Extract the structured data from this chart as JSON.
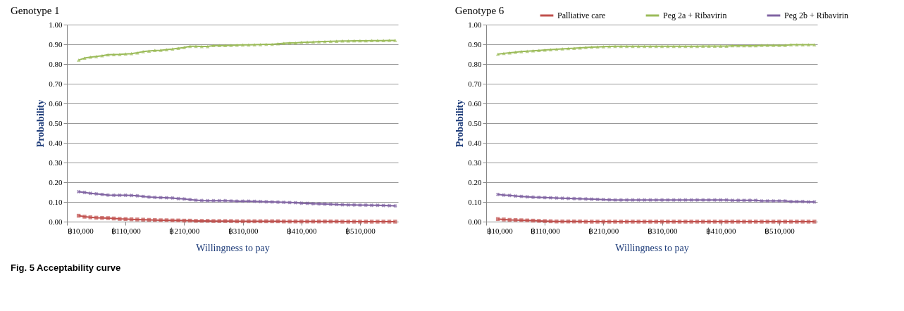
{
  "chart_data": [
    {
      "type": "line",
      "title": "Genotype 1",
      "xlabel": "Willingness to pay",
      "ylabel": "Probability",
      "x": [
        30000,
        40000,
        50000,
        60000,
        70000,
        80000,
        90000,
        100000,
        110000,
        120000,
        130000,
        140000,
        150000,
        160000,
        170000,
        180000,
        190000,
        200000,
        210000,
        220000,
        230000,
        240000,
        250000,
        260000,
        270000,
        280000,
        290000,
        300000,
        310000,
        320000,
        330000,
        340000,
        350000,
        360000,
        370000,
        380000,
        390000,
        400000,
        410000,
        420000,
        430000,
        440000,
        450000,
        460000,
        470000,
        480000,
        490000,
        500000,
        510000,
        520000,
        530000,
        540000,
        550000,
        560000,
        570000
      ],
      "series": [
        {
          "name": "Palliative care",
          "color": "#c0504d",
          "marker": "square",
          "values": [
            0.03,
            0.025,
            0.022,
            0.02,
            0.019,
            0.018,
            0.016,
            0.014,
            0.013,
            0.012,
            0.011,
            0.01,
            0.009,
            0.008,
            0.007,
            0.007,
            0.006,
            0.006,
            0.005,
            0.005,
            0.004,
            0.004,
            0.004,
            0.003,
            0.003,
            0.003,
            0.003,
            0.002,
            0.002,
            0.002,
            0.002,
            0.002,
            0.002,
            0.002,
            0.002,
            0.001,
            0.001,
            0.001,
            0.001,
            0.001,
            0.001,
            0.001,
            0.001,
            0.001,
            0.001,
            0.0,
            0.0,
            0.0,
            0.0,
            0.0,
            0.0,
            0.0,
            0.0,
            0.0,
            0.0
          ]
        },
        {
          "name": "Peg 2a + Ribavirin",
          "color": "#9bbb59",
          "marker": "triangle",
          "values": [
            0.82,
            0.83,
            0.835,
            0.838,
            0.842,
            0.847,
            0.848,
            0.849,
            0.851,
            0.853,
            0.857,
            0.863,
            0.866,
            0.869,
            0.87,
            0.873,
            0.876,
            0.88,
            0.884,
            0.89,
            0.89,
            0.889,
            0.889,
            0.894,
            0.894,
            0.894,
            0.895,
            0.896,
            0.897,
            0.897,
            0.898,
            0.899,
            0.9,
            0.9,
            0.903,
            0.905,
            0.907,
            0.907,
            0.91,
            0.911,
            0.912,
            0.913,
            0.914,
            0.915,
            0.916,
            0.917,
            0.917,
            0.918,
            0.918,
            0.918,
            0.919,
            0.919,
            0.919,
            0.92,
            0.92
          ]
        },
        {
          "name": "Peg 2b + Ribavirin",
          "color": "#8064a2",
          "marker": "cross",
          "values": [
            0.152,
            0.148,
            0.144,
            0.141,
            0.138,
            0.135,
            0.134,
            0.134,
            0.134,
            0.133,
            0.131,
            0.128,
            0.125,
            0.123,
            0.122,
            0.121,
            0.12,
            0.117,
            0.115,
            0.112,
            0.109,
            0.107,
            0.106,
            0.106,
            0.106,
            0.106,
            0.105,
            0.104,
            0.104,
            0.104,
            0.103,
            0.102,
            0.101,
            0.1,
            0.099,
            0.098,
            0.097,
            0.096,
            0.094,
            0.093,
            0.091,
            0.09,
            0.089,
            0.088,
            0.087,
            0.086,
            0.085,
            0.085,
            0.084,
            0.084,
            0.083,
            0.083,
            0.082,
            0.081,
            0.08
          ]
        }
      ],
      "xlim": [
        10000,
        575000
      ],
      "xticks": [
        {
          "value": 10000,
          "label": "฿10,000"
        },
        {
          "value": 110000,
          "label": "฿110,000"
        },
        {
          "value": 210000,
          "label": "฿210,000"
        },
        {
          "value": 310000,
          "label": "฿310,000"
        },
        {
          "value": 410000,
          "label": "฿410,000"
        },
        {
          "value": 510000,
          "label": "฿510,000"
        }
      ],
      "ylim": [
        0,
        1
      ],
      "yticks": [
        {
          "value": 0,
          "label": "0.00"
        },
        {
          "value": 0.1,
          "label": "0.10"
        },
        {
          "value": 0.2,
          "label": "0.20"
        },
        {
          "value": 0.3,
          "label": "0.30"
        },
        {
          "value": 0.4,
          "label": "0.40"
        },
        {
          "value": 0.5,
          "label": "0.50"
        },
        {
          "value": 0.6,
          "label": "0.60"
        },
        {
          "value": 0.7,
          "label": "0.70"
        },
        {
          "value": 0.8,
          "label": "0.80"
        },
        {
          "value": 0.9,
          "label": "0.90"
        },
        {
          "value": 1,
          "label": "1.00"
        }
      ],
      "grid": "y",
      "legend": "top",
      "line_style": "solid",
      "annotations": [
        "Fig. 5 Acceptability curve"
      ]
    },
    {
      "type": "line",
      "title": "Genotype 6",
      "xlabel": "Willingness to pay",
      "ylabel": "Probability",
      "x": [
        30000,
        40000,
        50000,
        60000,
        70000,
        80000,
        90000,
        100000,
        110000,
        120000,
        130000,
        140000,
        150000,
        160000,
        170000,
        180000,
        190000,
        200000,
        210000,
        220000,
        230000,
        240000,
        250000,
        260000,
        270000,
        280000,
        290000,
        300000,
        310000,
        320000,
        330000,
        340000,
        350000,
        360000,
        370000,
        380000,
        390000,
        400000,
        410000,
        420000,
        430000,
        440000,
        450000,
        460000,
        470000,
        480000,
        490000,
        500000,
        510000,
        520000,
        530000,
        540000,
        550000,
        560000,
        570000
      ],
      "series": [
        {
          "name": "Palliative care",
          "color": "#c0504d",
          "marker": "square",
          "values": [
            0.013,
            0.011,
            0.009,
            0.008,
            0.007,
            0.006,
            0.005,
            0.004,
            0.003,
            0.002,
            0.001,
            0.001,
            0.001,
            0.001,
            0.001,
            0.0,
            0.0,
            0.0,
            0.0,
            0.0,
            0.0,
            0.0,
            0.0,
            0.0,
            0.0,
            0.0,
            0.0,
            0.0,
            0.0,
            0.0,
            0.0,
            0.0,
            0.0,
            0.0,
            0.0,
            0.0,
            0.0,
            0.0,
            0.0,
            0.0,
            0.0,
            0.0,
            0.0,
            0.0,
            0.0,
            0.0,
            0.0,
            0.0,
            0.0,
            0.0,
            0.0,
            0.0,
            0.0,
            0.0,
            0.0
          ]
        },
        {
          "name": "Peg 2a + Ribavirin",
          "color": "#9bbb59",
          "marker": "triangle",
          "values": [
            0.85,
            0.854,
            0.857,
            0.86,
            0.863,
            0.865,
            0.867,
            0.869,
            0.871,
            0.873,
            0.875,
            0.877,
            0.879,
            0.88,
            0.882,
            0.884,
            0.886,
            0.887,
            0.888,
            0.889,
            0.89,
            0.89,
            0.89,
            0.89,
            0.89,
            0.89,
            0.89,
            0.89,
            0.89,
            0.89,
            0.89,
            0.89,
            0.89,
            0.89,
            0.89,
            0.891,
            0.891,
            0.891,
            0.891,
            0.891,
            0.893,
            0.893,
            0.893,
            0.893,
            0.893,
            0.895,
            0.895,
            0.895,
            0.895,
            0.895,
            0.898,
            0.898,
            0.898,
            0.898,
            0.898
          ]
        },
        {
          "name": "Peg 2b + Ribavirin",
          "color": "#8064a2",
          "marker": "cross",
          "values": [
            0.138,
            0.135,
            0.133,
            0.13,
            0.128,
            0.126,
            0.124,
            0.123,
            0.122,
            0.121,
            0.12,
            0.119,
            0.118,
            0.117,
            0.116,
            0.115,
            0.114,
            0.113,
            0.112,
            0.111,
            0.11,
            0.11,
            0.11,
            0.11,
            0.11,
            0.11,
            0.11,
            0.11,
            0.11,
            0.11,
            0.11,
            0.11,
            0.11,
            0.11,
            0.11,
            0.11,
            0.11,
            0.11,
            0.11,
            0.11,
            0.108,
            0.108,
            0.108,
            0.108,
            0.108,
            0.105,
            0.105,
            0.105,
            0.105,
            0.105,
            0.102,
            0.102,
            0.102,
            0.1,
            0.1
          ]
        }
      ],
      "xlim": [
        10000,
        575000
      ],
      "xticks": [
        {
          "value": 10000,
          "label": "฿10,000"
        },
        {
          "value": 110000,
          "label": "฿110,000"
        },
        {
          "value": 210000,
          "label": "฿210,000"
        },
        {
          "value": 310000,
          "label": "฿310,000"
        },
        {
          "value": 410000,
          "label": "฿410,000"
        },
        {
          "value": 510000,
          "label": "฿510,000"
        }
      ],
      "ylim": [
        0,
        1
      ],
      "yticks": [
        {
          "value": 0,
          "label": "0.00"
        },
        {
          "value": 0.1,
          "label": "0.10"
        },
        {
          "value": 0.2,
          "label": "0.20"
        },
        {
          "value": 0.3,
          "label": "0.30"
        },
        {
          "value": 0.4,
          "label": "0.40"
        },
        {
          "value": 0.5,
          "label": "0.50"
        },
        {
          "value": 0.6,
          "label": "0.60"
        },
        {
          "value": 0.7,
          "label": "0.70"
        },
        {
          "value": 0.8,
          "label": "0.80"
        },
        {
          "value": 0.9,
          "label": "0.90"
        },
        {
          "value": 1,
          "label": "1.00"
        }
      ],
      "grid": "y",
      "legend": "top",
      "line_style": "solid"
    }
  ]
}
